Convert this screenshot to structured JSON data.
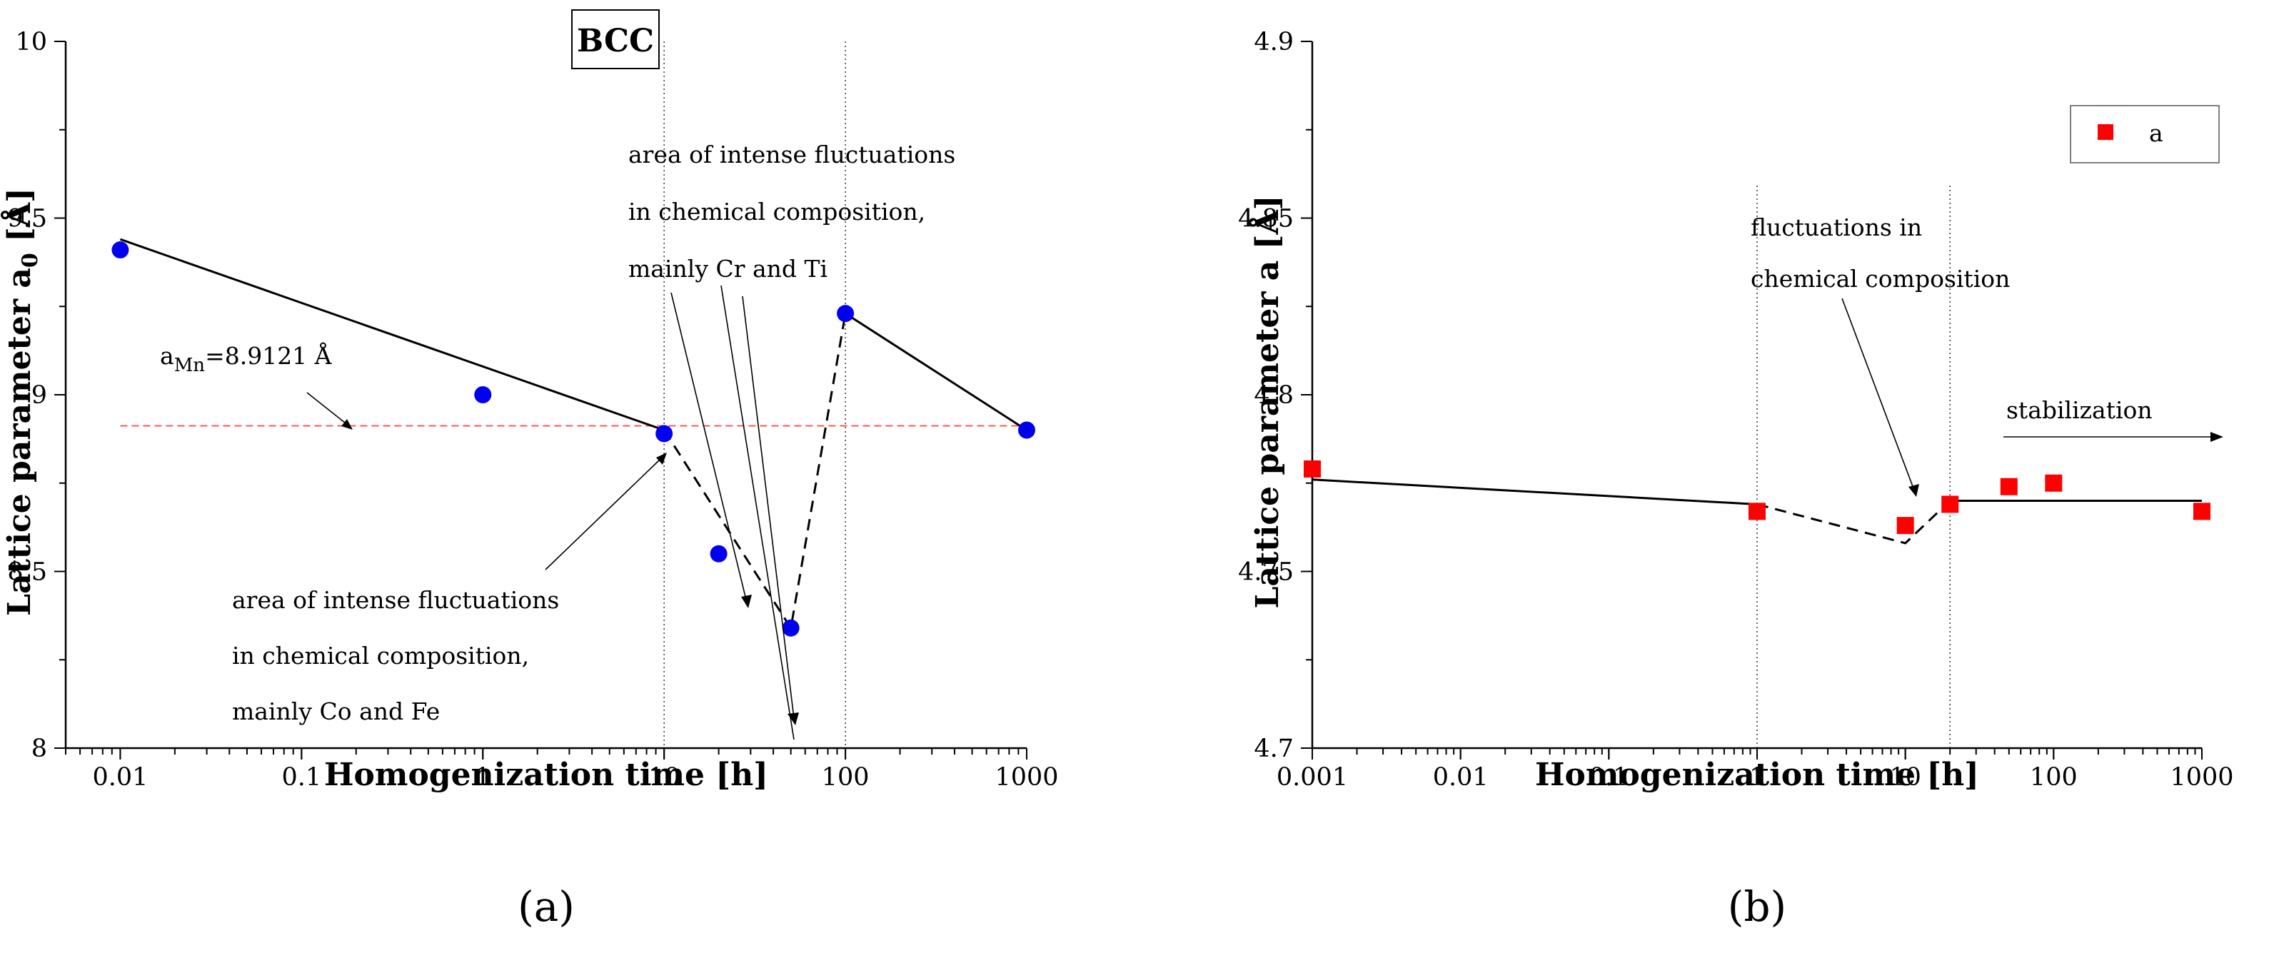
{
  "chart_data": [
    {
      "type": "scatter",
      "panel_label": "(a)",
      "phase_label": "BCC",
      "xscale": "log",
      "xlim": [
        0.005,
        1000
      ],
      "ylim": [
        8,
        10
      ],
      "xlabel": "Homogenization time [h]",
      "ylabel_main": "Lattice parameter a",
      "ylabel_sub": "0",
      "ylabel_unit": " [Å]",
      "xticks": [
        0.01,
        0.1,
        1,
        10,
        100,
        1000
      ],
      "xtick_labels": [
        "0.01",
        "0.1",
        "1",
        "10",
        "100",
        "1000"
      ],
      "yticks": [
        8,
        8.5,
        9,
        9.5,
        10
      ],
      "ytick_labels": [
        "8",
        "8.5",
        "9",
        "9.5",
        "10"
      ],
      "series": [
        {
          "name": "a0",
          "color": "#0000ee",
          "marker": "circle",
          "x": [
            0.01,
            1,
            10,
            20,
            50,
            100,
            1000
          ],
          "y": [
            9.41,
            9.0,
            8.89,
            8.55,
            8.34,
            9.23,
            8.9
          ]
        }
      ],
      "trend_solid": [
        {
          "x": [
            0.01,
            10
          ],
          "y": [
            9.44,
            8.9
          ]
        },
        {
          "x": [
            100,
            1000
          ],
          "y": [
            9.23,
            8.9
          ]
        }
      ],
      "trend_dashed": [
        {
          "x": [
            10,
            50,
            100
          ],
          "y": [
            8.9,
            8.34,
            9.23
          ]
        }
      ],
      "reference_line": {
        "y": 8.9121,
        "color": "#ff5555",
        "label_main": "a",
        "label_sub": "Mn",
        "label_rest": "=8.9121 Å"
      },
      "vertical_lines": [
        10,
        100
      ],
      "annotations": [
        {
          "lines": [
            "area of intense fluctuations",
            "in chemical composition,",
            "mainly Cr and Ti"
          ]
        },
        {
          "lines": [
            "area of intense fluctuations",
            "in chemical composition,",
            "mainly Co and Fe"
          ]
        }
      ]
    },
    {
      "type": "scatter",
      "panel_label": "(b)",
      "xscale": "log",
      "xlim": [
        0.001,
        1000
      ],
      "ylim": [
        4.7,
        4.9
      ],
      "xlabel": "Homogenization time [h]",
      "ylabel_main": "Lattice parameter a [Å]",
      "xticks": [
        0.001,
        0.01,
        0.1,
        1,
        10,
        100,
        1000
      ],
      "xtick_labels": [
        "0.001",
        "0.01",
        "0.1",
        "1",
        "10",
        "100",
        "1000"
      ],
      "yticks": [
        4.7,
        4.75,
        4.8,
        4.85,
        4.9
      ],
      "ytick_labels": [
        "4.7",
        "4.75",
        "4.8",
        "4.85",
        "4.9"
      ],
      "legend": {
        "position": "top-right",
        "entries": [
          "a"
        ]
      },
      "series": [
        {
          "name": "a",
          "color": "#ff0000",
          "marker": "square",
          "x": [
            0.001,
            1,
            10,
            20,
            50,
            100,
            1000
          ],
          "y": [
            4.779,
            4.767,
            4.763,
            4.769,
            4.774,
            4.775,
            4.767
          ]
        }
      ],
      "trend_solid": [
        {
          "x": [
            0.001,
            1
          ],
          "y": [
            4.776,
            4.769
          ]
        },
        {
          "x": [
            20,
            1000
          ],
          "y": [
            4.77,
            4.77
          ]
        }
      ],
      "trend_dashed": [
        {
          "x": [
            1,
            10,
            20
          ],
          "y": [
            4.769,
            4.758,
            4.77
          ]
        }
      ],
      "vertical_lines": [
        1,
        20
      ],
      "annotations": [
        {
          "lines": [
            "fluctuations in",
            "chemical composition"
          ]
        },
        {
          "lines": [
            "stabilization"
          ]
        }
      ]
    }
  ]
}
